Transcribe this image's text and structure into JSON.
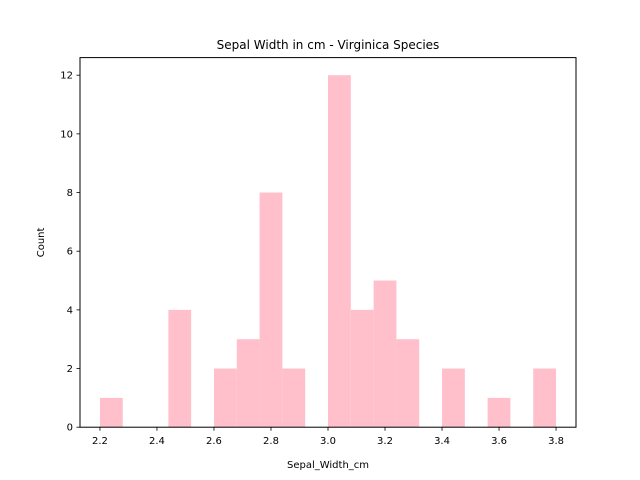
{
  "chart_data": {
    "type": "bar",
    "title": "Sepal Width in cm - Virginica Species",
    "xlabel": "Sepal_Width_cm",
    "ylabel": "Count",
    "xlim": [
      2.13,
      3.87
    ],
    "ylim": [
      0,
      12.6
    ],
    "xticks": [
      2.2,
      2.4,
      2.6,
      2.8,
      3.0,
      3.2,
      3.4,
      3.6,
      3.8
    ],
    "xtick_labels": [
      "2.2",
      "2.4",
      "2.6",
      "2.8",
      "3.0",
      "3.2",
      "3.4",
      "3.6",
      "3.8"
    ],
    "yticks": [
      0,
      2,
      4,
      6,
      8,
      10,
      12
    ],
    "ytick_labels": [
      "0",
      "2",
      "4",
      "6",
      "8",
      "10",
      "12"
    ],
    "bin_edges": [
      2.2,
      2.28,
      2.36,
      2.44,
      2.52,
      2.6,
      2.68,
      2.76,
      2.84,
      2.92,
      3.0,
      3.08,
      3.16,
      3.24,
      3.32,
      3.4,
      3.48,
      3.56,
      3.64,
      3.72,
      3.8
    ],
    "values": [
      1,
      0,
      0,
      4,
      0,
      2,
      3,
      8,
      2,
      0,
      12,
      4,
      5,
      3,
      0,
      2,
      0,
      1,
      0,
      2
    ],
    "bar_color": "#ffc0cb",
    "grid": false,
    "legend": false
  }
}
